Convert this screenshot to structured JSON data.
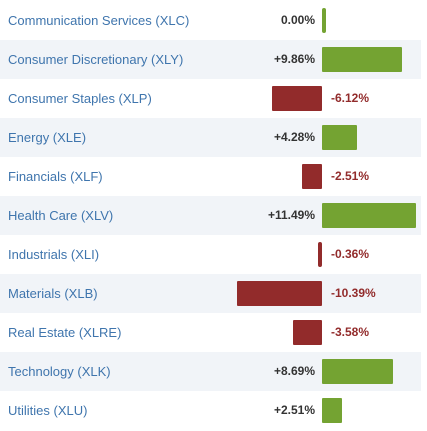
{
  "colors": {
    "gain": "#74a332",
    "loss": "#922b2b",
    "label": "#3f75ad",
    "stripe": "#f1f4f8"
  },
  "sectors": [
    {
      "label": "Communication Services (XLC)",
      "change": 0.0,
      "display": "0.00%"
    },
    {
      "label": "Consumer Discretionary (XLY)",
      "change": 9.86,
      "display": "+9.86%"
    },
    {
      "label": "Consumer Staples (XLP)",
      "change": -6.12,
      "display": "-6.12%"
    },
    {
      "label": "Energy (XLE)",
      "change": 4.28,
      "display": "+4.28%"
    },
    {
      "label": "Financials (XLF)",
      "change": -2.51,
      "display": "-2.51%"
    },
    {
      "label": "Health Care (XLV)",
      "change": 11.49,
      "display": "+11.49%"
    },
    {
      "label": "Industrials (XLI)",
      "change": -0.36,
      "display": "-0.36%"
    },
    {
      "label": "Materials (XLB)",
      "change": -10.39,
      "display": "-10.39%"
    },
    {
      "label": "Real Estate (XLRE)",
      "change": -3.58,
      "display": "-3.58%"
    },
    {
      "label": "Technology (XLK)",
      "change": 8.69,
      "display": "+8.69%"
    },
    {
      "label": "Utilities (XLU)",
      "change": 2.51,
      "display": "+2.51%"
    }
  ]
}
